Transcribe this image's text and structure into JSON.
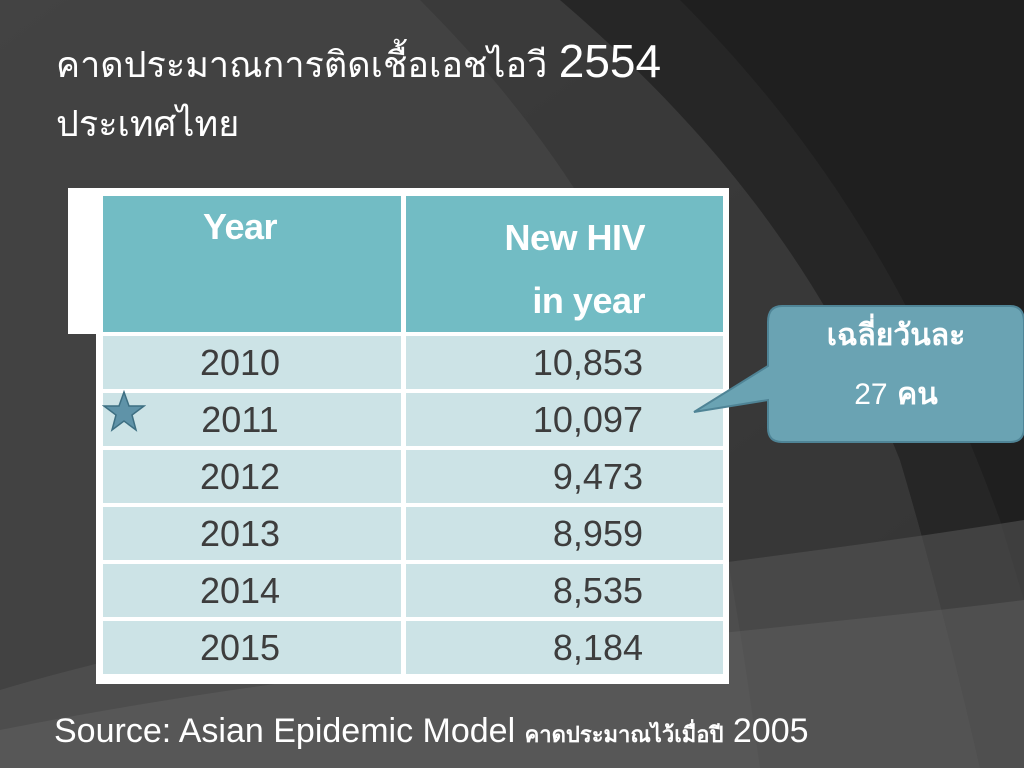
{
  "slide": {
    "title_line1": "คาดประมาณการติดเชื้อเอชไอวี",
    "title_year": "2554",
    "title_line2": "ประเทศไทย"
  },
  "table": {
    "headers": {
      "year": "Year",
      "new_hiv_line1": "New HIV",
      "new_hiv_line2": "in year"
    },
    "rows": [
      {
        "year": "2010",
        "value": "10,853"
      },
      {
        "year": "2011",
        "value": "10,097"
      },
      {
        "year": "2012",
        "value": "9,473"
      },
      {
        "year": "2013",
        "value": "8,959"
      },
      {
        "year": "2014",
        "value": "8,535"
      },
      {
        "year": "2015",
        "value": "8,184"
      }
    ],
    "highlighted_row": "2011"
  },
  "callout": {
    "line1": "เฉลี่ยวันละ",
    "number": "27",
    "unit": "คน"
  },
  "source": {
    "text": "Source: Asian Epidemic Model",
    "thai_note": "คาดประมาณไว้เมื่อปี",
    "year": "2005"
  },
  "colors": {
    "header_fill": "#72bcc4",
    "cell_fill": "#cce3e6",
    "callout_fill": "#6aa3b3",
    "star_fill": "#5f93a8",
    "background": "#2b2b2b"
  },
  "icons": {
    "marker": "star-icon"
  }
}
